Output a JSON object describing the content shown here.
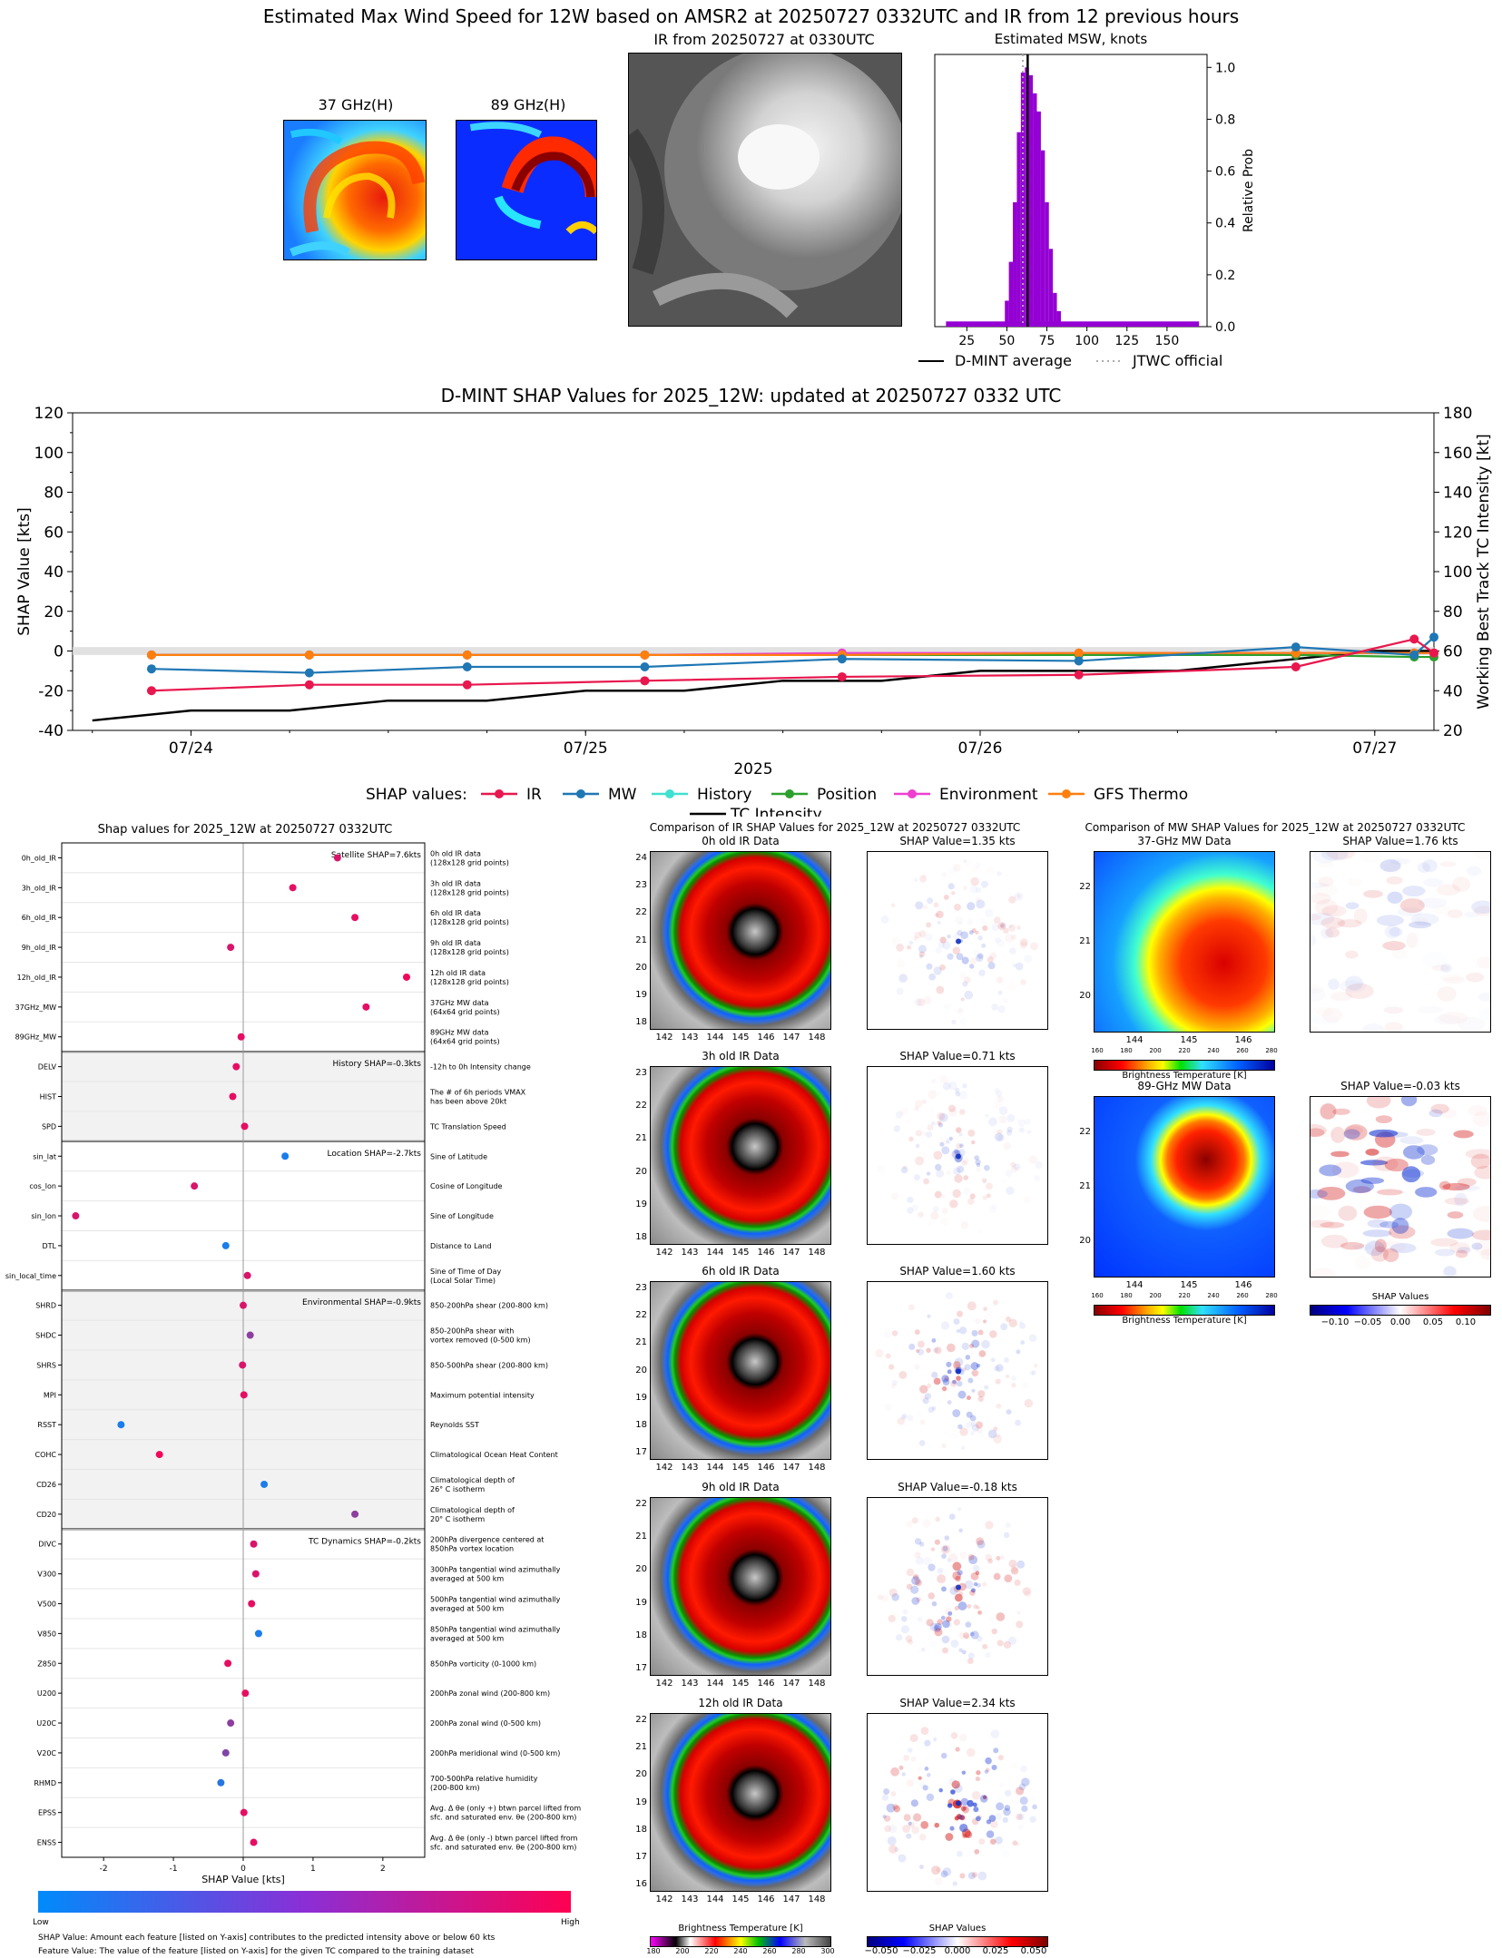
{
  "main_title": "Estimated Max Wind Speed for 12W based on AMSR2 at 20250727 0332UTC and IR from 12 previous hours",
  "top": {
    "mw37_title": "37 GHz(H)",
    "mw89_title": "89 GHz(H)",
    "ir_title": "IR from 20250727 at 0330UTC",
    "msw_title": "Estimated MSW, knots",
    "msw_ylabel": "Relative Prob",
    "legend_dmint": "D-MINT average",
    "legend_jtwc": "JTWC official"
  },
  "shap_ts_title": "D-MINT SHAP Values for 2025_12W: updated at 20250727 0332 UTC",
  "shap_ts_legend_label": "SHAP values:",
  "left_panel": {
    "title": "Shap values for 2025_12W at 20250727 0332UTC",
    "xlabel": "SHAP Value [kts]",
    "cbar_low": "Low",
    "cbar_high": "High",
    "footnote1": "SHAP Value: Amount each feature [listed on Y-axis] contributes to the predicted intensity above or below 60 kts",
    "footnote2": "Feature Value: The value of the feature [listed on Y-axis] for the given TC compared to the training dataset",
    "group_labels": [
      "Satellite SHAP=7.6kts",
      "History SHAP=-0.3kts",
      "Location SHAP=-2.7kts",
      "Environmental SHAP=-0.9kts",
      "TC Dynamics SHAP=-0.2kts"
    ]
  },
  "ir_compare": {
    "title": "Comparison of IR SHAP Values for 2025_12W at 20250727 0332UTC",
    "panels": [
      {
        "title": "0h old IR Data",
        "shap": "SHAP Value=1.35 kts",
        "yticks": [
          "24",
          "23",
          "22",
          "21",
          "20",
          "19",
          "18"
        ]
      },
      {
        "title": "3h old IR Data",
        "shap": "SHAP Value=0.71 kts",
        "yticks": [
          "23",
          "22",
          "21",
          "20",
          "19",
          "18"
        ]
      },
      {
        "title": "6h old IR Data",
        "shap": "SHAP Value=1.60 kts",
        "yticks": [
          "23",
          "22",
          "21",
          "20",
          "19",
          "18",
          "17"
        ]
      },
      {
        "title": "9h old IR Data",
        "shap": "SHAP Value=-0.18 kts",
        "yticks": [
          "22",
          "21",
          "20",
          "19",
          "18",
          "17"
        ]
      },
      {
        "title": "12h old IR Data",
        "shap": "SHAP Value=2.34 kts",
        "yticks": [
          "22",
          "21",
          "20",
          "19",
          "18",
          "17",
          "16"
        ]
      }
    ],
    "xticks": [
      "142",
      "143",
      "144",
      "145",
      "146",
      "147",
      "148"
    ],
    "cbar_label": "Brightness Temperature [K]",
    "cbar_ticks": [
      "180",
      "200",
      "220",
      "240",
      "260",
      "280",
      "300"
    ],
    "shap_cbar_label": "SHAP Values",
    "shap_cbar_ticks": [
      "−0.050",
      "−0.025",
      "0.000",
      "0.025",
      "0.050"
    ]
  },
  "mw_compare": {
    "title": "Comparison of MW SHAP Values for 2025_12W at 20250727 0332UTC",
    "panels": [
      {
        "title": "37-GHz MW Data",
        "shap": "SHAP Value=1.76 kts"
      },
      {
        "title": "89-GHz MW Data",
        "shap": "SHAP Value=-0.03 kts"
      }
    ],
    "yticks": [
      "22",
      "21",
      "20"
    ],
    "xticks": [
      "144",
      "145",
      "146"
    ],
    "cbar_label": "Brightness Temperature [K]",
    "cbar_ticks": [
      "160",
      "180",
      "200",
      "220",
      "240",
      "260",
      "280"
    ],
    "shap_cbar_label": "SHAP Values",
    "shap_cbar_ticks": [
      "−0.10",
      "−0.05",
      "0.00",
      "0.05",
      "0.10"
    ]
  },
  "colors": {
    "ir": "#e8174e",
    "mw": "#1f77b4",
    "history": "#40e0d0",
    "position": "#2ca02c",
    "environment": "#ee3fd0",
    "gfs": "#ff7f0e",
    "purple": "#9400d3"
  },
  "chart_data": [
    {
      "type": "bar",
      "title": "Estimated MSW, knots",
      "ylabel": "Relative Prob",
      "xlim": [
        5,
        175
      ],
      "ylim": [
        0,
        1.05
      ],
      "xticks": [
        25,
        50,
        75,
        100,
        125,
        150
      ],
      "yticks": [
        0.0,
        0.2,
        0.4,
        0.6,
        0.8,
        1.0
      ],
      "bin_width": 2.5,
      "bins": [
        {
          "x": 50,
          "y": 0.1
        },
        {
          "x": 52.5,
          "y": 0.25
        },
        {
          "x": 55,
          "y": 0.48
        },
        {
          "x": 57.5,
          "y": 0.75
        },
        {
          "x": 60,
          "y": 0.98
        },
        {
          "x": 62.5,
          "y": 1.0
        },
        {
          "x": 65,
          "y": 0.97
        },
        {
          "x": 67.5,
          "y": 0.9
        },
        {
          "x": 70,
          "y": 0.83
        },
        {
          "x": 72.5,
          "y": 0.68
        },
        {
          "x": 75,
          "y": 0.48
        },
        {
          "x": 77.5,
          "y": 0.3
        },
        {
          "x": 80,
          "y": 0.13
        },
        {
          "x": 82.5,
          "y": 0.06
        }
      ],
      "baseline": {
        "x_from": 12,
        "x_to": 170,
        "y": 0.02
      },
      "dmint_average": 63,
      "jtwc_official": 60,
      "legend": [
        "D-MINT average",
        "JTWC official"
      ]
    },
    {
      "type": "line",
      "title": "D-MINT SHAP Values for 2025_12W: updated at 20250727 0332 UTC",
      "xlabel": "2025",
      "ylabel": "SHAP Value [kts]",
      "ylabel_right": "Working Best Track TC Intensity [kt]",
      "ylim": [
        -40,
        120
      ],
      "ylim_right": [
        20,
        180
      ],
      "yticks": [
        -40,
        -20,
        0,
        20,
        40,
        60,
        80,
        100,
        120
      ],
      "yticks_right": [
        20,
        40,
        60,
        80,
        100,
        120,
        140,
        160,
        180
      ],
      "xlim": [
        23.7,
        27.15
      ],
      "xticks": [
        {
          "v": 24,
          "label": "07/24"
        },
        {
          "v": 25,
          "label": "07/25"
        },
        {
          "v": 26,
          "label": "07/26"
        },
        {
          "v": 27,
          "label": "07/27"
        }
      ],
      "series": [
        {
          "name": "IR",
          "key": "ir",
          "x": [
            23.9,
            24.3,
            24.7,
            25.15,
            25.65,
            26.25,
            26.8,
            27.1,
            27.15
          ],
          "y": [
            -20,
            -17,
            -17,
            -15,
            -13,
            -12,
            -8,
            6,
            -1
          ]
        },
        {
          "name": "MW",
          "key": "mw",
          "x": [
            23.9,
            24.3,
            24.7,
            25.15,
            25.65,
            26.25,
            26.8,
            27.1,
            27.15
          ],
          "y": [
            -9,
            -11,
            -8,
            -8,
            -4,
            -5,
            2,
            -2,
            7
          ]
        },
        {
          "name": "History",
          "key": "history",
          "x": [
            23.9,
            24.3,
            24.7,
            25.15,
            25.65,
            26.25,
            26.8,
            27.1,
            27.15
          ],
          "y": [
            -2,
            -2,
            -2,
            -2,
            -2,
            -2,
            -1,
            -1,
            -1
          ]
        },
        {
          "name": "Position",
          "key": "position",
          "x": [
            23.9,
            24.3,
            24.7,
            25.15,
            25.65,
            26.25,
            26.8,
            27.1,
            27.15
          ],
          "y": [
            -2,
            -2,
            -2,
            -2,
            -2,
            -2,
            -2,
            -3,
            -3
          ]
        },
        {
          "name": "Environment",
          "key": "environment",
          "x": [
            23.9,
            24.3,
            24.7,
            25.15,
            25.65,
            26.25,
            26.8,
            27.1,
            27.15
          ],
          "y": [
            -2,
            -2,
            -2,
            -2,
            -1,
            -1,
            -1,
            -1,
            -1
          ]
        },
        {
          "name": "GFS Thermo",
          "key": "gfs",
          "x": [
            23.9,
            24.3,
            24.7,
            25.15,
            25.65,
            26.25,
            26.8,
            27.1,
            27.15
          ],
          "y": [
            -2,
            -2,
            -2,
            -2,
            -2,
            -1,
            -1,
            -1,
            -1
          ]
        }
      ],
      "tc_intensity": {
        "name": "TC Intensity",
        "x": [
          23.75,
          24.0,
          24.25,
          24.5,
          24.75,
          25.0,
          25.25,
          25.5,
          25.75,
          26.0,
          26.25,
          26.5,
          26.75,
          27.0,
          27.15
        ],
        "y": [
          25,
          30,
          30,
          35,
          35,
          40,
          40,
          45,
          45,
          50,
          50,
          50,
          55,
          60,
          60
        ]
      }
    },
    {
      "type": "scatter",
      "title": "Shap values for 2025_12W at 20250727 0332UTC",
      "xlabel": "SHAP Value [kts]",
      "xlim": [
        -2.6,
        2.6
      ],
      "xticks": [
        -2,
        -1,
        0,
        1,
        2
      ],
      "features": [
        {
          "name": "0h_old_IR",
          "desc": [
            "0h old IR data",
            "(128x128 grid points)"
          ],
          "shap": 1.35,
          "fv": 0.85
        },
        {
          "name": "3h_old_IR",
          "desc": [
            "3h old IR data",
            "(128x128 grid points)"
          ],
          "shap": 0.71,
          "fv": 0.9
        },
        {
          "name": "6h_old_IR",
          "desc": [
            "6h old IR data",
            "(128x128 grid points)"
          ],
          "shap": 1.6,
          "fv": 0.9
        },
        {
          "name": "9h_old_IR",
          "desc": [
            "9h old IR data",
            "(128x128 grid points)"
          ],
          "shap": -0.18,
          "fv": 0.85
        },
        {
          "name": "12h_old_IR",
          "desc": [
            "12h old IR data",
            "(128x128 grid points)"
          ],
          "shap": 2.34,
          "fv": 0.95
        },
        {
          "name": "37GHz_MW",
          "desc": [
            "37GHz MW data",
            "(64x64 grid points)"
          ],
          "shap": 1.76,
          "fv": 0.9
        },
        {
          "name": "89GHz_MW",
          "desc": [
            "89GHz MW data",
            "(64x64 grid points)"
          ],
          "shap": -0.03,
          "fv": 0.9
        },
        {
          "name": "DELV",
          "desc": [
            "-12h to 0h Intensity change"
          ],
          "shap": -0.1,
          "fv": 0.9
        },
        {
          "name": "HIST",
          "desc": [
            "The # of 6h periods VMAX",
            "has been above 20kt"
          ],
          "shap": -0.15,
          "fv": 0.9
        },
        {
          "name": "SPD",
          "desc": [
            "TC Translation Speed"
          ],
          "shap": 0.02,
          "fv": 0.9
        },
        {
          "name": "sin_lat",
          "desc": [
            "Sine of Latitude"
          ],
          "shap": 0.6,
          "fv": 0.1
        },
        {
          "name": "cos_lon",
          "desc": [
            "Cosine of Longitude"
          ],
          "shap": -0.7,
          "fv": 0.85
        },
        {
          "name": "sin_lon",
          "desc": [
            "Sine of Longitude"
          ],
          "shap": -2.4,
          "fv": 0.85
        },
        {
          "name": "DTL",
          "desc": [
            "Distance to Land"
          ],
          "shap": -0.25,
          "fv": 0.1
        },
        {
          "name": "sin_local_time",
          "desc": [
            "Sine of Time of Day",
            "(Local Solar Time)"
          ],
          "shap": 0.06,
          "fv": 0.85
        },
        {
          "name": "SHRD",
          "desc": [
            "850-200hPa shear (200-800 km)"
          ],
          "shap": 0.0,
          "fv": 0.85
        },
        {
          "name": "SHDC",
          "desc": [
            "850-200hPa shear with",
            "vortex removed (0-500 km)"
          ],
          "shap": 0.1,
          "fv": 0.55
        },
        {
          "name": "SHRS",
          "desc": [
            "850-500hPa shear (200-800 km)"
          ],
          "shap": -0.01,
          "fv": 0.85
        },
        {
          "name": "MPI",
          "desc": [
            "Maximum potential intensity"
          ],
          "shap": 0.01,
          "fv": 0.9
        },
        {
          "name": "RSST",
          "desc": [
            "Reynolds SST"
          ],
          "shap": -1.75,
          "fv": 0.1
        },
        {
          "name": "COHC",
          "desc": [
            "Climatological Ocean Heat Content"
          ],
          "shap": -1.2,
          "fv": 0.95
        },
        {
          "name": "CD26",
          "desc": [
            "Climatological depth of",
            "26° C isotherm"
          ],
          "shap": 0.3,
          "fv": 0.1
        },
        {
          "name": "CD20",
          "desc": [
            "Climatological depth of",
            "20° C isotherm"
          ],
          "shap": 1.6,
          "fv": 0.55
        },
        {
          "name": "DIVC",
          "desc": [
            "200hPa divergence centered at",
            "850hPa vortex location"
          ],
          "shap": 0.15,
          "fv": 0.85
        },
        {
          "name": "V300",
          "desc": [
            "300hPa tangential wind azimuthally",
            "averaged at 500 km"
          ],
          "shap": 0.18,
          "fv": 0.85
        },
        {
          "name": "V500",
          "desc": [
            "500hPa tangential wind azimuthally",
            "averaged at 500 km"
          ],
          "shap": 0.12,
          "fv": 0.9
        },
        {
          "name": "V850",
          "desc": [
            "850hPa tangential wind azimuthally",
            "averaged at 500 km"
          ],
          "shap": 0.22,
          "fv": 0.1
        },
        {
          "name": "Z850",
          "desc": [
            "850hPa vorticity (0-1000 km)"
          ],
          "shap": -0.22,
          "fv": 0.9
        },
        {
          "name": "U200",
          "desc": [
            "200hPa zonal wind (200-800 km)"
          ],
          "shap": 0.03,
          "fv": 0.9
        },
        {
          "name": "U20C",
          "desc": [
            "200hPa zonal wind (0-500 km)"
          ],
          "shap": -0.18,
          "fv": 0.55
        },
        {
          "name": "V20C",
          "desc": [
            "200hPa meridional wind (0-500 km)"
          ],
          "shap": -0.25,
          "fv": 0.5
        },
        {
          "name": "RHMD",
          "desc": [
            "700-500hPa relative humidity",
            "(200-800 km)"
          ],
          "shap": -0.32,
          "fv": 0.15
        },
        {
          "name": "EPSS",
          "desc": [
            "Avg. Δ θe (only +) btwn parcel lifted from",
            "sfc. and saturated env. θe (200-800 km)"
          ],
          "shap": 0.01,
          "fv": 0.9
        },
        {
          "name": "ENSS",
          "desc": [
            "Avg. Δ θe (only -) btwn parcel lifted from",
            "sfc. and saturated env. θe (200-800 km)"
          ],
          "shap": 0.15,
          "fv": 0.9
        }
      ],
      "groups": [
        {
          "label": "Satellite SHAP=7.6kts",
          "start": 0,
          "end": 6,
          "shaded": false
        },
        {
          "label": "History SHAP=-0.3kts",
          "start": 7,
          "end": 9,
          "shaded": true
        },
        {
          "label": "Location SHAP=-2.7kts",
          "start": 10,
          "end": 14,
          "shaded": false
        },
        {
          "label": "Environmental SHAP=-0.9kts",
          "start": 15,
          "end": 22,
          "shaded": true
        },
        {
          "label": "TC Dynamics SHAP=-0.2kts",
          "start": 23,
          "end": 33,
          "shaded": false
        }
      ]
    }
  ]
}
